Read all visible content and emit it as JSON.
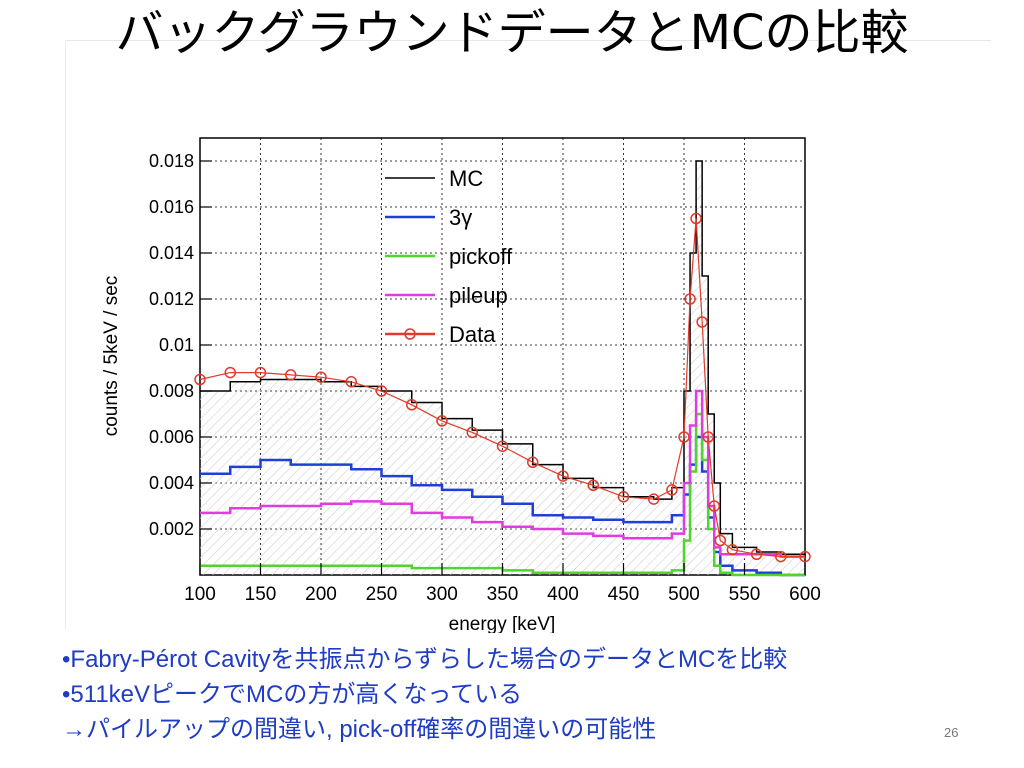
{
  "slide": {
    "title": "バックグラウンドデータとMCの比較",
    "bullets": [
      "•Fabry-Pérot Cavityを共振点からずらした場合のデータとMCを比較",
      "•511keVピークでMCの方が高くなっている",
      "→パイルアップの間違い, pick-off確率の間違いの可能性"
    ],
    "page_number": "26"
  },
  "chart_data": {
    "type": "line",
    "xlabel": "energy [keV]",
    "ylabel": "counts / 5keV / sec",
    "xlim": [
      100,
      600
    ],
    "ylim": [
      0,
      0.019
    ],
    "x_ticks": [
      100,
      150,
      200,
      250,
      300,
      350,
      400,
      450,
      500,
      550,
      600
    ],
    "y_ticks": [
      0.002,
      0.004,
      0.006,
      0.008,
      0.01,
      0.012,
      0.014,
      0.016,
      0.018
    ],
    "y_tick_labels": [
      "0.002",
      "0.004",
      "0.006",
      "0.008",
      "0.01",
      "0.012",
      "0.014",
      "0.016",
      "0.018"
    ],
    "grid": true,
    "legend_position": "top-center",
    "colors": {
      "MC": "#000000",
      "3γ": "#1f3fd6",
      "pickoff": "#4fd62a",
      "pileup": "#e03ce0",
      "Data": "#e03a2a"
    },
    "series": [
      {
        "name": "MC",
        "x": [
          100,
          125,
          150,
          175,
          200,
          225,
          250,
          275,
          300,
          325,
          350,
          375,
          400,
          425,
          450,
          475,
          490,
          500,
          505,
          510,
          515,
          520,
          525,
          530,
          540,
          560,
          580,
          600
        ],
        "values": [
          0.008,
          0.0084,
          0.0085,
          0.0085,
          0.0084,
          0.0082,
          0.008,
          0.0075,
          0.0068,
          0.0063,
          0.0057,
          0.0048,
          0.0042,
          0.0038,
          0.0034,
          0.0033,
          0.0038,
          0.008,
          0.014,
          0.018,
          0.013,
          0.007,
          0.004,
          0.0018,
          0.0012,
          0.001,
          0.0009,
          0.0008
        ]
      },
      {
        "name": "3γ",
        "x": [
          100,
          125,
          150,
          175,
          200,
          225,
          250,
          275,
          300,
          325,
          350,
          375,
          400,
          425,
          450,
          475,
          490,
          500,
          505,
          510,
          515,
          520,
          525,
          530,
          540,
          560,
          580,
          600
        ],
        "values": [
          0.0044,
          0.0047,
          0.005,
          0.0048,
          0.0048,
          0.0046,
          0.0043,
          0.0039,
          0.0037,
          0.0034,
          0.0031,
          0.0026,
          0.0025,
          0.0024,
          0.0023,
          0.0023,
          0.0026,
          0.0035,
          0.0048,
          0.006,
          0.0045,
          0.0025,
          0.001,
          0.0004,
          0.0002,
          0.0001,
          0.0,
          0.0
        ]
      },
      {
        "name": "pickoff",
        "x": [
          100,
          125,
          150,
          175,
          200,
          225,
          250,
          275,
          300,
          325,
          350,
          375,
          400,
          425,
          450,
          475,
          490,
          500,
          505,
          510,
          515,
          520,
          525,
          530,
          540,
          560,
          580,
          600
        ],
        "values": [
          0.0004,
          0.0004,
          0.0004,
          0.0004,
          0.0004,
          0.0004,
          0.0004,
          0.0003,
          0.0003,
          0.0003,
          0.0002,
          0.0001,
          0.0001,
          0.0001,
          0.0001,
          0.0001,
          0.0002,
          0.0015,
          0.0045,
          0.007,
          0.005,
          0.002,
          0.0004,
          0.0001,
          0.0,
          0.0,
          0.0,
          0.0
        ]
      },
      {
        "name": "pileup",
        "x": [
          100,
          125,
          150,
          175,
          200,
          225,
          250,
          275,
          300,
          325,
          350,
          375,
          400,
          425,
          450,
          475,
          490,
          500,
          505,
          510,
          515,
          520,
          525,
          530,
          540,
          560,
          580,
          600
        ],
        "values": [
          0.0027,
          0.0029,
          0.003,
          0.003,
          0.0031,
          0.0032,
          0.0031,
          0.0027,
          0.0025,
          0.0023,
          0.0021,
          0.002,
          0.0018,
          0.0017,
          0.0016,
          0.0016,
          0.0018,
          0.004,
          0.0065,
          0.008,
          0.006,
          0.003,
          0.0012,
          0.0009,
          0.0009,
          0.0009,
          0.0008,
          0.0008
        ]
      },
      {
        "name": "Data",
        "x": [
          100,
          125,
          150,
          175,
          200,
          225,
          250,
          275,
          300,
          325,
          350,
          375,
          400,
          425,
          450,
          475,
          490,
          500,
          505,
          510,
          515,
          520,
          525,
          530,
          540,
          560,
          580,
          600
        ],
        "values": [
          0.0085,
          0.0088,
          0.0088,
          0.0087,
          0.0086,
          0.0084,
          0.008,
          0.0074,
          0.0067,
          0.0062,
          0.0056,
          0.0049,
          0.0043,
          0.0039,
          0.0034,
          0.0033,
          0.0037,
          0.006,
          0.012,
          0.0155,
          0.011,
          0.006,
          0.003,
          0.0015,
          0.0011,
          0.0009,
          0.0008,
          0.0008
        ]
      }
    ]
  }
}
